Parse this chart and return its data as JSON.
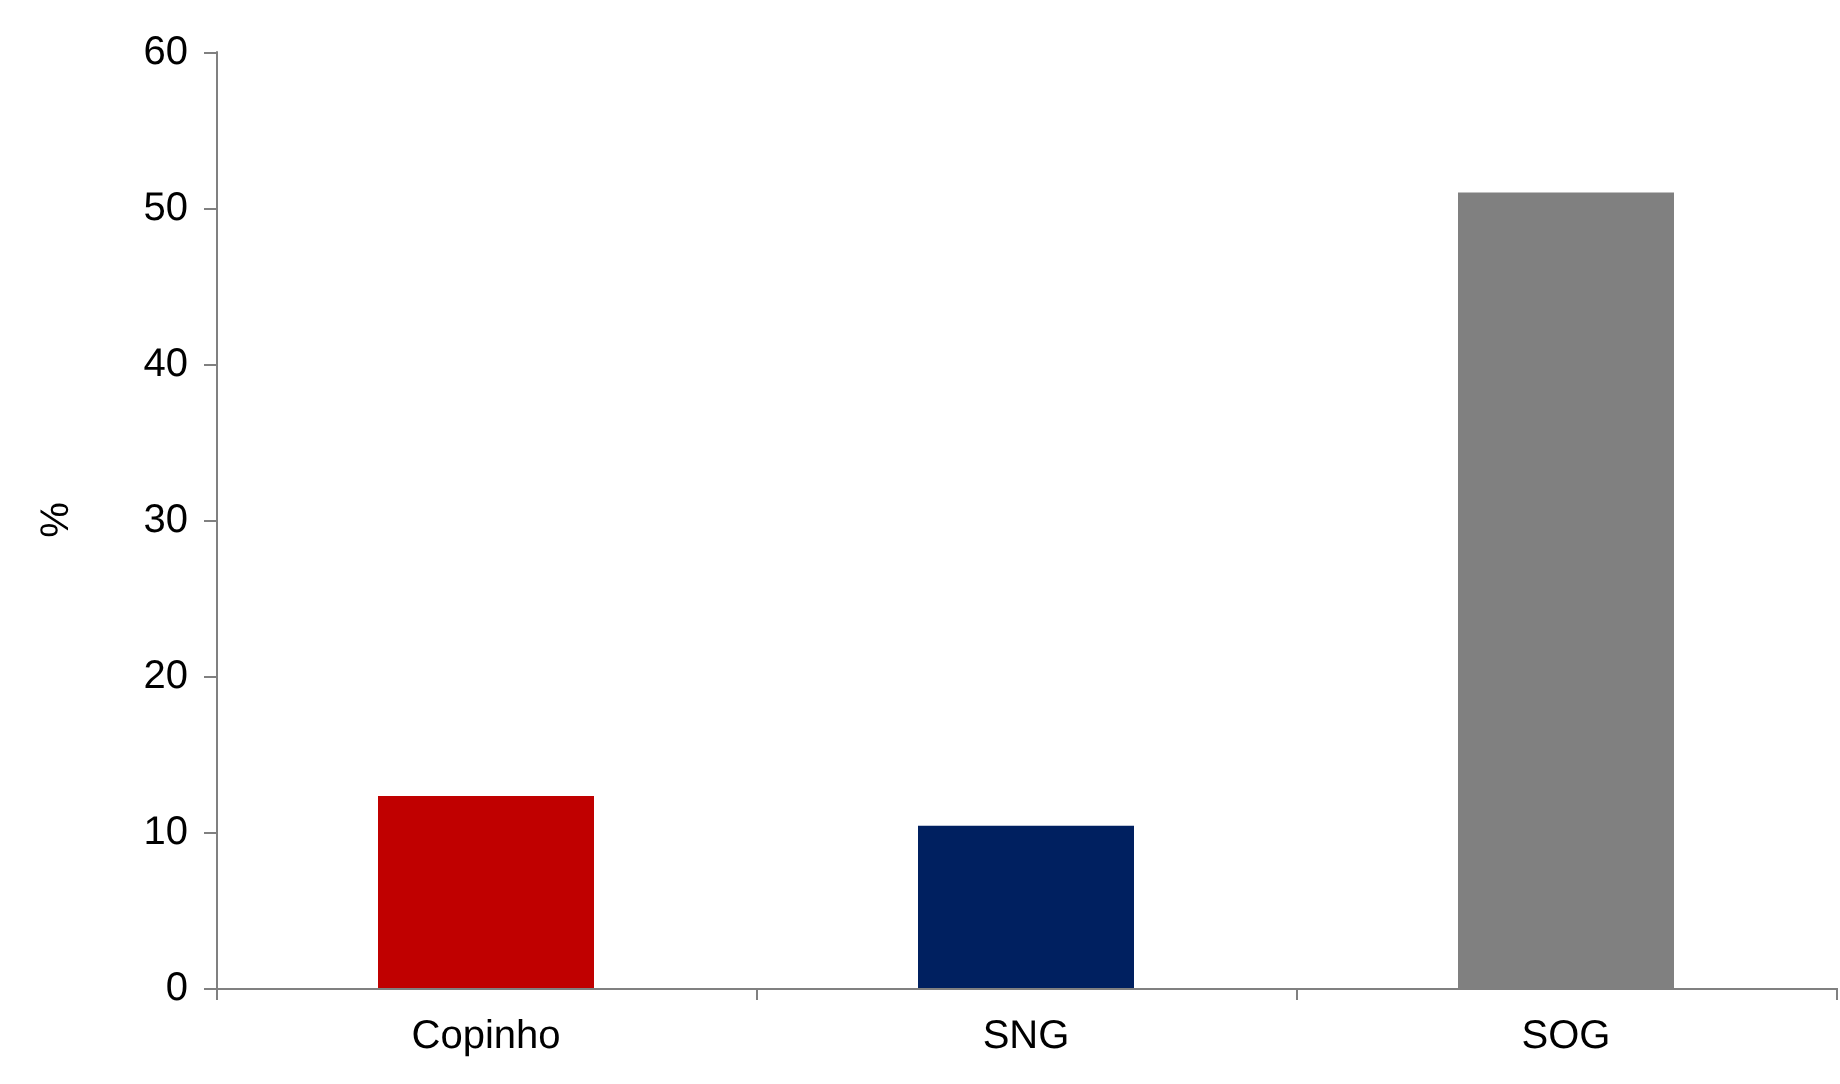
{
  "chart_data": {
    "type": "bar",
    "ylabel": "%",
    "categories": [
      "Copinho",
      "SNG",
      "SOG"
    ],
    "values": [
      12.3,
      10.4,
      51.0
    ],
    "colors": [
      "#c00000",
      "#002060",
      "#808080"
    ],
    "ylim": [
      0,
      60
    ],
    "yticks": [
      0,
      10,
      20,
      30,
      40,
      50,
      60
    ],
    "grid": false
  }
}
